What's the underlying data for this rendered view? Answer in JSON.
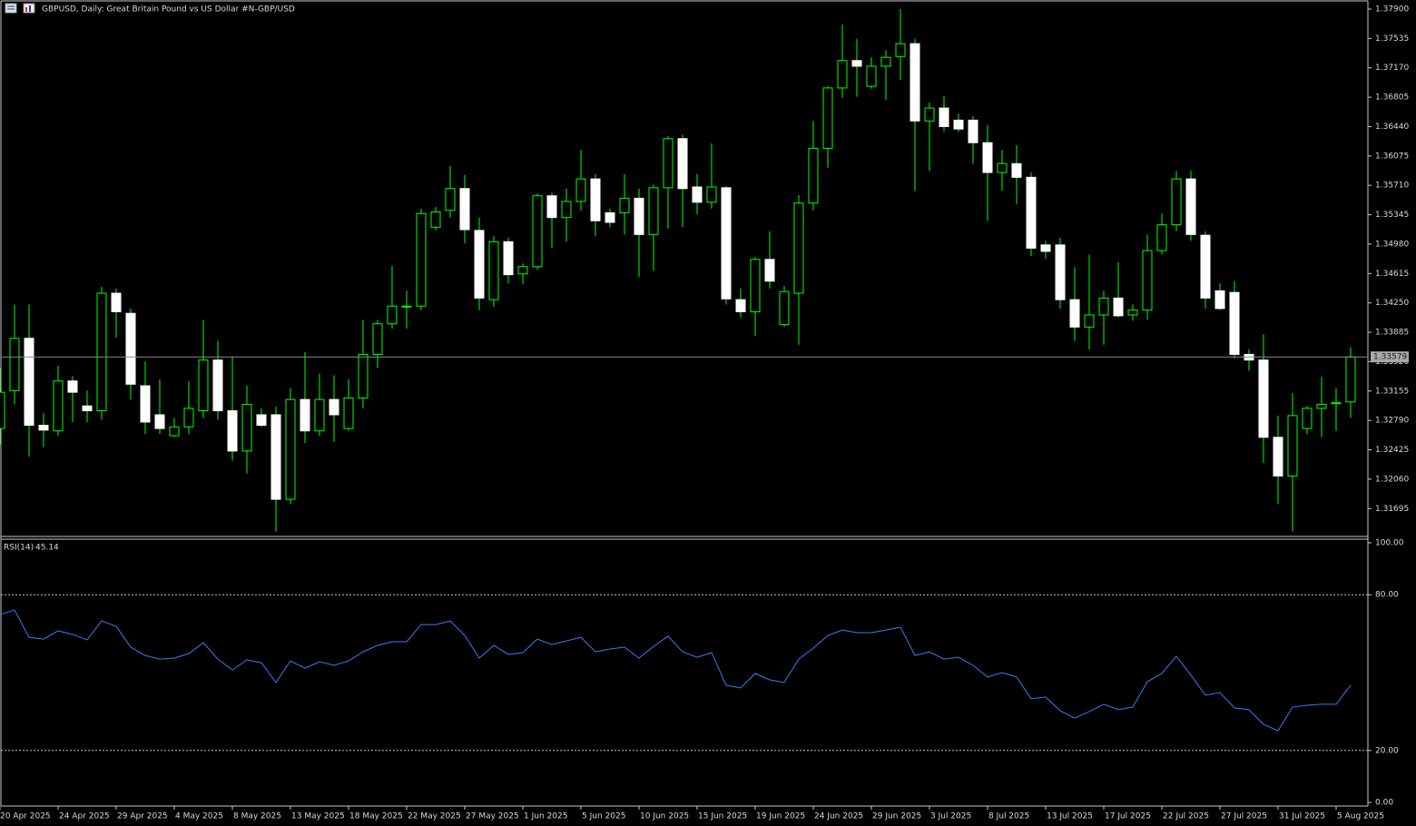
{
  "chart_data": [
    {
      "type": "candlestick",
      "title": "GBPUSD, Daily:  Great Britain Pound vs US Dollar #N-GBP/USD",
      "categories": [
        "20 Apr 2025",
        null,
        null,
        null,
        "24 Apr 2025",
        null,
        null,
        null,
        "29 Apr 2025",
        null,
        null,
        null,
        "4 May 2025",
        null,
        null,
        null,
        "8 May 2025",
        null,
        null,
        null,
        "13 May 2025",
        null,
        null,
        null,
        "18 May 2025",
        null,
        null,
        null,
        "22 May 2025",
        null,
        null,
        null,
        "27 May 2025",
        null,
        null,
        null,
        "1 Jun 2025",
        null,
        null,
        null,
        "5 Jun 2025",
        null,
        null,
        null,
        "10 Jun 2025",
        null,
        null,
        null,
        "15 Jun 2025",
        null,
        null,
        null,
        "19 Jun 2025",
        null,
        null,
        null,
        "24 Jun 2025",
        null,
        null,
        null,
        "29 Jun 2025",
        null,
        null,
        null,
        "3 Jul 2025",
        null,
        null,
        null,
        "8 Jul 2025",
        null,
        null,
        null,
        "13 Jul 2025",
        null,
        null,
        null,
        "17 Jul 2025",
        null,
        null,
        null,
        "22 Jul 2025",
        null,
        null,
        null,
        "27 Jul 2025",
        null,
        null,
        null,
        "31 Jul 2025",
        null,
        null,
        null,
        "5 Aug 2025",
        null
      ],
      "open": [
        1.3269,
        1.3316,
        1.3381,
        1.3273,
        1.3266,
        1.3328,
        1.3297,
        1.3291,
        1.3437,
        1.3412,
        1.3322,
        1.3286,
        1.326,
        1.3271,
        1.3291,
        1.3354,
        1.3291,
        1.3241,
        1.3286,
        1.3286,
        1.3181,
        1.3305,
        1.3266,
        1.3305,
        1.3269,
        1.3307,
        1.3361,
        1.3399,
        1.342,
        1.3421,
        1.3519,
        1.354,
        1.3567,
        1.3515,
        1.3429,
        1.3501,
        1.3461,
        1.347,
        1.3558,
        1.3531,
        1.3551,
        1.3579,
        1.3537,
        1.3537,
        1.3555,
        1.351,
        1.3568,
        1.3629,
        1.3569,
        1.355,
        1.3568,
        1.3429,
        1.3414,
        1.3479,
        1.3398,
        1.3437,
        1.3549,
        1.3617,
        1.3692,
        1.3726,
        1.3694,
        1.3719,
        1.3731,
        1.3747,
        1.3651,
        1.3667,
        1.3652,
        1.3652,
        1.3624,
        1.3587,
        1.3598,
        1.3581,
        1.3497,
        1.3497,
        1.3429,
        1.3395,
        1.341,
        1.3431,
        1.341,
        1.3416,
        1.349,
        1.3522,
        1.3579,
        1.3509,
        1.344,
        1.3438,
        1.3361,
        1.3354,
        1.3258,
        1.321,
        1.3269,
        1.3294,
        1.33,
        1.3302
      ],
      "high": [
        1.3344,
        1.3423,
        1.3423,
        1.3288,
        1.3347,
        1.3334,
        1.3316,
        1.3445,
        1.3443,
        1.3418,
        1.3352,
        1.333,
        1.3282,
        1.3328,
        1.3404,
        1.3378,
        1.3358,
        1.3322,
        1.3294,
        1.3296,
        1.3319,
        1.3364,
        1.3337,
        1.3335,
        1.333,
        1.3404,
        1.3404,
        1.3471,
        1.344,
        1.3542,
        1.3544,
        1.3595,
        1.3584,
        1.3531,
        1.3508,
        1.3506,
        1.3474,
        1.3561,
        1.3562,
        1.3567,
        1.3615,
        1.3585,
        1.3542,
        1.3585,
        1.3567,
        1.3572,
        1.3632,
        1.3634,
        1.3585,
        1.3623,
        1.357,
        1.3443,
        1.3482,
        1.3514,
        1.3446,
        1.3559,
        1.3651,
        1.3694,
        1.3771,
        1.3753,
        1.373,
        1.3739,
        1.379,
        1.3753,
        1.3674,
        1.3682,
        1.366,
        1.3657,
        1.3646,
        1.3615,
        1.3621,
        1.3587,
        1.3502,
        1.3506,
        1.3469,
        1.3485,
        1.344,
        1.3476,
        1.3423,
        1.351,
        1.3536,
        1.3589,
        1.3589,
        1.3514,
        1.3449,
        1.3452,
        1.3367,
        1.3386,
        1.3285,
        1.3313,
        1.3297,
        1.3333,
        1.3319,
        1.337
      ],
      "low": [
        1.3249,
        1.3299,
        1.3234,
        1.3246,
        1.326,
        1.3277,
        1.3277,
        1.328,
        1.3382,
        1.3305,
        1.3262,
        1.3262,
        1.3258,
        1.3262,
        1.3282,
        1.328,
        1.3229,
        1.3213,
        1.3271,
        1.3141,
        1.3175,
        1.3251,
        1.326,
        1.3252,
        1.3266,
        1.3294,
        1.3344,
        1.3393,
        1.3393,
        1.3416,
        1.3515,
        1.3531,
        1.3499,
        1.3416,
        1.342,
        1.3449,
        1.3448,
        1.3466,
        1.3493,
        1.3501,
        1.354,
        1.3508,
        1.3519,
        1.351,
        1.3457,
        1.3465,
        1.3517,
        1.3519,
        1.3535,
        1.3542,
        1.3423,
        1.3407,
        1.3384,
        1.3443,
        1.3395,
        1.3373,
        1.354,
        1.3593,
        1.368,
        1.3681,
        1.3691,
        1.3677,
        1.3702,
        1.3564,
        1.3589,
        1.3638,
        1.3637,
        1.3598,
        1.3527,
        1.3564,
        1.3548,
        1.3483,
        1.348,
        1.3418,
        1.3378,
        1.3367,
        1.3373,
        1.3407,
        1.3403,
        1.3404,
        1.3485,
        1.3514,
        1.3502,
        1.3418,
        1.3416,
        1.3356,
        1.3341,
        1.3226,
        1.3175,
        1.3141,
        1.3262,
        1.3258,
        1.3266,
        1.3282
      ],
      "close": [
        1.3314,
        1.3381,
        1.3273,
        1.3267,
        1.3328,
        1.3314,
        1.3291,
        1.3437,
        1.3414,
        1.3324,
        1.3277,
        1.3269,
        1.3271,
        1.3294,
        1.3354,
        1.3291,
        1.3241,
        1.3299,
        1.3273,
        1.3181,
        1.3305,
        1.3266,
        1.3305,
        1.3286,
        1.3307,
        1.3361,
        1.3399,
        1.3421,
        1.3421,
        1.3536,
        1.3538,
        1.3567,
        1.3516,
        1.3431,
        1.3501,
        1.346,
        1.347,
        1.3558,
        1.3531,
        1.3551,
        1.3579,
        1.3527,
        1.3525,
        1.3555,
        1.351,
        1.3568,
        1.3629,
        1.3567,
        1.355,
        1.3569,
        1.343,
        1.3414,
        1.3479,
        1.3452,
        1.3439,
        1.3549,
        1.3617,
        1.3692,
        1.3726,
        1.3719,
        1.3719,
        1.373,
        1.3747,
        1.3651,
        1.3667,
        1.3644,
        1.3641,
        1.3624,
        1.3587,
        1.3598,
        1.3581,
        1.3493,
        1.3489,
        1.3429,
        1.3395,
        1.341,
        1.3431,
        1.3409,
        1.3416,
        1.349,
        1.3522,
        1.3579,
        1.351,
        1.3431,
        1.3418,
        1.3361,
        1.3354,
        1.3258,
        1.321,
        1.3285,
        1.3294,
        1.3299,
        1.3301,
        1.33579
      ],
      "up_color": "#00ff00",
      "down_color": "#ffffff",
      "current_price": {
        "value": 1.33579,
        "label": "1.33579"
      },
      "ylim": [
        1.3136,
        1.3799
      ],
      "yticks": [
        {
          "value": 1.379,
          "label": "1.37900"
        },
        {
          "value": 1.37535,
          "label": "1.37535"
        },
        {
          "value": 1.3717,
          "label": "1.37170"
        },
        {
          "value": 1.36805,
          "label": "1.36805"
        },
        {
          "value": 1.3644,
          "label": "1.36440"
        },
        {
          "value": 1.36075,
          "label": "1.36075"
        },
        {
          "value": 1.3571,
          "label": "1.35710"
        },
        {
          "value": 1.35345,
          "label": "1.35345"
        },
        {
          "value": 1.3498,
          "label": "1.34980"
        },
        {
          "value": 1.34615,
          "label": "1.34615"
        },
        {
          "value": 1.3425,
          "label": "1.34250"
        },
        {
          "value": 1.33885,
          "label": "1.33885"
        },
        {
          "value": 1.3352,
          "label": "1.33520"
        },
        {
          "value": 1.33155,
          "label": "1.33155"
        },
        {
          "value": 1.3279,
          "label": "1.32790"
        },
        {
          "value": 1.32425,
          "label": "1.32425"
        },
        {
          "value": 1.3206,
          "label": "1.32060"
        },
        {
          "value": 1.31695,
          "label": "1.31695"
        }
      ]
    },
    {
      "type": "line",
      "title": "RSI(14)",
      "series": [
        {
          "color": "#3b7de8",
          "values": [
            72.4,
            74.1,
            63.6,
            62.9,
            66.1,
            64.7,
            62.6,
            69.9,
            67.8,
            59.8,
            56.6,
            55.2,
            55.6,
            57.3,
            61.5,
            55.2,
            51.0,
            54.9,
            53.8,
            46.2,
            54.5,
            51.7,
            54.2,
            52.8,
            54.5,
            58.0,
            60.5,
            61.9,
            61.9,
            68.5,
            68.5,
            69.9,
            64.3,
            55.6,
            60.5,
            57.0,
            57.7,
            62.9,
            60.8,
            62.2,
            63.6,
            58.0,
            59.1,
            59.8,
            55.6,
            60.1,
            64.0,
            58.0,
            55.9,
            57.7,
            45.1,
            44.1,
            49.7,
            47.2,
            46.2,
            55.2,
            59.4,
            64.3,
            66.4,
            65.4,
            65.4,
            66.4,
            67.5,
            56.6,
            58.0,
            55.2,
            55.9,
            52.8,
            48.3,
            50.0,
            48.3,
            39.9,
            40.6,
            35.3,
            32.5,
            35.0,
            37.8,
            35.7,
            36.7,
            46.5,
            49.7,
            56.3,
            49.0,
            41.3,
            42.3,
            36.4,
            35.7,
            30.1,
            27.6,
            36.7,
            37.4,
            37.8,
            37.8,
            45.14
          ]
        }
      ],
      "ylim": [
        0,
        100
      ],
      "yticks": [
        {
          "value": 100,
          "label": "100.00"
        },
        {
          "value": 80,
          "label": "80.00"
        },
        {
          "value": 20,
          "label": "20.00"
        },
        {
          "value": 0,
          "label": "0.00"
        }
      ]
    }
  ]
}
